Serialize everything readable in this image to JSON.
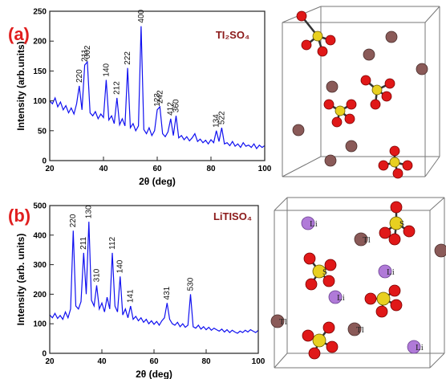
{
  "chart_data": [
    {
      "type": "line",
      "panel_label": "(a)",
      "title": "TI₂SO₄",
      "xlabel": "2θ (deg)",
      "ylabel": "Intensity (arb.units)",
      "color": "#1010f0",
      "x": [
        20,
        21,
        22,
        23,
        24,
        25,
        26,
        27,
        28,
        29,
        30,
        31,
        32,
        33,
        34,
        35,
        36,
        37,
        38,
        39,
        40,
        41,
        42,
        43,
        44,
        45,
        46,
        47,
        48,
        49,
        50,
        51,
        52,
        53,
        54,
        55,
        56,
        57,
        58,
        59,
        60,
        61,
        62,
        63,
        64,
        65,
        66,
        67,
        68,
        69,
        70,
        71,
        72,
        73,
        74,
        75,
        76,
        77,
        78,
        79,
        80,
        81,
        82,
        83,
        84,
        85,
        86,
        87,
        88,
        89,
        90,
        91,
        92,
        93,
        94,
        95,
        96,
        97,
        98,
        99,
        100
      ],
      "values": [
        100,
        95,
        105,
        90,
        98,
        85,
        92,
        80,
        88,
        78,
        95,
        125,
        85,
        160,
        165,
        80,
        75,
        82,
        70,
        78,
        72,
        135,
        68,
        75,
        62,
        105,
        60,
        70,
        58,
        155,
        55,
        62,
        50,
        58,
        225,
        52,
        45,
        55,
        42,
        50,
        85,
        90,
        45,
        40,
        48,
        70,
        42,
        75,
        38,
        42,
        35,
        40,
        33,
        38,
        45,
        32,
        36,
        30,
        34,
        28,
        35,
        30,
        50,
        32,
        55,
        28,
        30,
        25,
        32,
        24,
        28,
        22,
        30,
        24,
        26,
        22,
        28,
        20,
        26,
        22,
        25
      ],
      "xlim": [
        20,
        100
      ],
      "ylim": [
        0,
        250
      ],
      "xticks": [
        20,
        40,
        60,
        80,
        100
      ],
      "yticks": [
        0,
        50,
        100,
        150,
        200,
        250
      ],
      "annotations": [
        {
          "x": 31,
          "label": "220"
        },
        {
          "x": 33,
          "label": "211"
        },
        {
          "x": 34,
          "label": "002"
        },
        {
          "x": 41,
          "label": "140"
        },
        {
          "x": 45,
          "label": "212"
        },
        {
          "x": 49,
          "label": "222"
        },
        {
          "x": 54,
          "label": "400"
        },
        {
          "x": 60,
          "label": "123"
        },
        {
          "x": 61,
          "label": "242"
        },
        {
          "x": 65,
          "label": "412"
        },
        {
          "x": 67,
          "label": "360"
        },
        {
          "x": 82,
          "label": "134"
        },
        {
          "x": 84,
          "label": "522"
        }
      ]
    },
    {
      "type": "line",
      "panel_label": "(b)",
      "title": "LiTISO₄",
      "xlabel": "2θ (deg)",
      "ylabel": "Intensity (arb. units)",
      "color": "#1010f0",
      "x": [
        20,
        21,
        22,
        23,
        24,
        25,
        26,
        27,
        28,
        29,
        30,
        31,
        32,
        33,
        34,
        35,
        36,
        37,
        38,
        39,
        40,
        41,
        42,
        43,
        44,
        45,
        46,
        47,
        48,
        49,
        50,
        51,
        52,
        53,
        54,
        55,
        56,
        57,
        58,
        59,
        60,
        61,
        62,
        63,
        64,
        65,
        66,
        67,
        68,
        69,
        70,
        71,
        72,
        73,
        74,
        75,
        76,
        77,
        78,
        79,
        80,
        81,
        82,
        83,
        84,
        85,
        86,
        87,
        88,
        89,
        90,
        91,
        92,
        93,
        94,
        95,
        96,
        97,
        98,
        99,
        100
      ],
      "values": [
        130,
        120,
        135,
        118,
        128,
        115,
        140,
        120,
        150,
        415,
        160,
        150,
        175,
        340,
        200,
        445,
        180,
        160,
        230,
        150,
        170,
        140,
        190,
        150,
        340,
        160,
        140,
        260,
        130,
        150,
        120,
        160,
        115,
        125,
        110,
        120,
        105,
        115,
        100,
        110,
        98,
        108,
        95,
        110,
        120,
        170,
        115,
        100,
        95,
        105,
        90,
        100,
        88,
        95,
        200,
        90,
        85,
        95,
        82,
        90,
        80,
        88,
        78,
        85,
        80,
        75,
        82,
        72,
        80,
        70,
        78,
        72,
        68,
        75,
        70,
        78,
        72,
        80,
        75,
        70,
        78
      ],
      "xlim": [
        20,
        100
      ],
      "ylim": [
        0,
        500
      ],
      "xticks": [
        20,
        40,
        60,
        80,
        100
      ],
      "yticks": [
        0,
        100,
        200,
        300,
        400,
        500
      ],
      "annotations": [
        {
          "x": 29,
          "label": "220"
        },
        {
          "x": 33,
          "label": "211"
        },
        {
          "x": 35,
          "label": "130"
        },
        {
          "x": 38,
          "label": "310"
        },
        {
          "x": 44,
          "label": "112"
        },
        {
          "x": 47,
          "label": "140"
        },
        {
          "x": 51,
          "label": "141"
        },
        {
          "x": 65,
          "label": "431"
        },
        {
          "x": 74,
          "label": "530"
        }
      ]
    }
  ],
  "structure_b": {
    "atom_labels": [
      "Li",
      "Tl",
      "S",
      "S",
      "Li",
      "Li",
      "Tl",
      "Tl",
      "Li"
    ]
  }
}
